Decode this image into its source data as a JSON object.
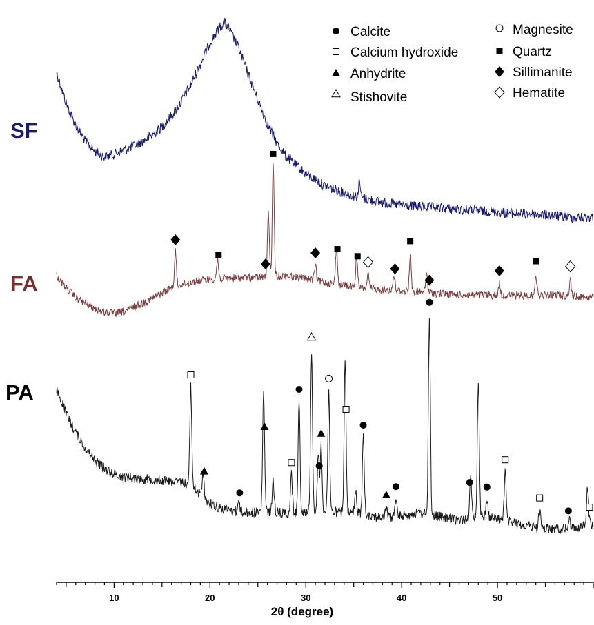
{
  "chart_data": {
    "type": "line",
    "xlabel": "2θ (degree)",
    "xlim": [
      4,
      60
    ],
    "x_ticks": [
      "10",
      "20",
      "30",
      "40",
      "50"
    ],
    "x_tick_values": [
      10,
      20,
      30,
      40,
      50
    ],
    "grid": false,
    "legend": [
      {
        "symbol": "filled-circle",
        "label": "Calcite"
      },
      {
        "symbol": "open-square",
        "label": "Calcium hydroxide"
      },
      {
        "symbol": "filled-triangle",
        "label": "Anhydrite"
      },
      {
        "symbol": "open-triangle",
        "label": "Stishovite"
      },
      {
        "symbol": "open-circle",
        "label": "Magnesite"
      },
      {
        "symbol": "filled-square",
        "label": "Quartz"
      },
      {
        "symbol": "filled-diamond",
        "label": "Sillimanite"
      },
      {
        "symbol": "open-diamond",
        "label": "Hematite"
      }
    ],
    "series": [
      {
        "name": "SF",
        "color": "#1a1a6e",
        "noise": 9,
        "points": [
          [
            4,
            105
          ],
          [
            5,
            150
          ],
          [
            6,
            182
          ],
          [
            7,
            205
          ],
          [
            8,
            220
          ],
          [
            9,
            228
          ],
          [
            10,
            224
          ],
          [
            11,
            218
          ],
          [
            12,
            212
          ],
          [
            13,
            205
          ],
          [
            14,
            196
          ],
          [
            15,
            184
          ],
          [
            16,
            168
          ],
          [
            17,
            148
          ],
          [
            18,
            123
          ],
          [
            19,
            93
          ],
          [
            20,
            62
          ],
          [
            21,
            40
          ],
          [
            21.5,
            32
          ],
          [
            22,
            42
          ],
          [
            23,
            70
          ],
          [
            24,
            108
          ],
          [
            25,
            145
          ],
          [
            26,
            180
          ],
          [
            27,
            208
          ],
          [
            28,
            228
          ],
          [
            30,
            252
          ],
          [
            32,
            270
          ],
          [
            34,
            280
          ],
          [
            36,
            288
          ],
          [
            38,
            294
          ],
          [
            40,
            298
          ],
          [
            42,
            300
          ],
          [
            44,
            302
          ],
          [
            46,
            304
          ],
          [
            48,
            306
          ],
          [
            50,
            308
          ],
          [
            52,
            310
          ],
          [
            54,
            311
          ],
          [
            56,
            313
          ],
          [
            58,
            316
          ],
          [
            60,
            315
          ]
        ],
        "peaks": [
          {
            "x": 35.6,
            "height": 22
          }
        ]
      },
      {
        "name": "FA",
        "color": "#7a4040",
        "noise": 7,
        "points": [
          [
            4,
            400
          ],
          [
            5,
            418
          ],
          [
            6,
            432
          ],
          [
            7,
            440
          ],
          [
            8,
            448
          ],
          [
            9,
            453
          ],
          [
            10,
            455
          ],
          [
            11,
            452
          ],
          [
            12,
            446
          ],
          [
            13,
            440
          ],
          [
            14,
            433
          ],
          [
            15,
            425
          ],
          [
            16,
            418
          ],
          [
            17,
            413
          ],
          [
            18,
            410
          ],
          [
            19,
            407
          ],
          [
            20,
            405
          ],
          [
            22,
            404
          ],
          [
            24,
            403
          ],
          [
            26,
            402
          ],
          [
            28,
            400
          ],
          [
            30,
            404
          ],
          [
            32,
            410
          ],
          [
            34,
            414
          ],
          [
            36,
            418
          ],
          [
            38,
            420
          ],
          [
            40,
            422
          ],
          [
            42,
            424
          ],
          [
            44,
            426
          ],
          [
            46,
            428
          ],
          [
            48,
            428
          ],
          [
            50,
            429
          ],
          [
            52,
            429
          ],
          [
            54,
            429
          ],
          [
            56,
            428
          ],
          [
            58,
            430
          ],
          [
            60,
            432
          ]
        ],
        "peaks": [
          {
            "x": 16.4,
            "height": 50
          },
          {
            "x": 20.8,
            "height": 28
          },
          {
            "x": 26.1,
            "height": 95
          },
          {
            "x": 26.6,
            "height": 160
          },
          {
            "x": 31.0,
            "height": 22
          },
          {
            "x": 33.2,
            "height": 55
          },
          {
            "x": 35.3,
            "height": 45
          },
          {
            "x": 36.5,
            "height": 20
          },
          {
            "x": 39.2,
            "height": 22
          },
          {
            "x": 40.9,
            "height": 55
          },
          {
            "x": 42.6,
            "height": 28
          },
          {
            "x": 50.2,
            "height": 18
          },
          {
            "x": 54.0,
            "height": 32
          },
          {
            "x": 57.6,
            "height": 25
          }
        ]
      },
      {
        "name": "PA",
        "color": "#1a1a1a",
        "noise": 9,
        "points": [
          [
            4,
            565
          ],
          [
            5,
            600
          ],
          [
            6,
            628
          ],
          [
            7,
            650
          ],
          [
            8,
            668
          ],
          [
            9,
            680
          ],
          [
            10,
            688
          ],
          [
            11,
            692
          ],
          [
            12,
            694
          ],
          [
            13,
            695
          ],
          [
            14,
            696
          ],
          [
            15,
            697
          ],
          [
            16,
            698
          ],
          [
            17,
            700
          ],
          [
            18,
            702
          ],
          [
            19,
            718
          ],
          [
            20,
            730
          ],
          [
            21,
            737
          ],
          [
            22,
            740
          ],
          [
            24,
            744
          ],
          [
            26,
            742
          ],
          [
            28,
            745
          ],
          [
            30,
            742
          ],
          [
            32,
            742
          ],
          [
            34,
            744
          ],
          [
            36,
            745
          ],
          [
            38,
            752
          ],
          [
            40,
            748
          ],
          [
            42,
            744
          ],
          [
            44,
            750
          ],
          [
            46,
            755
          ],
          [
            48,
            748
          ],
          [
            50,
            752
          ],
          [
            52,
            760
          ],
          [
            54,
            765
          ],
          [
            56,
            768
          ],
          [
            58,
            766
          ],
          [
            60,
            760
          ]
        ],
        "peaks": [
          {
            "x": 18.0,
            "height": 140
          },
          {
            "x": 19.3,
            "height": 35
          },
          {
            "x": 23.0,
            "height": 15
          },
          {
            "x": 25.6,
            "height": 175
          },
          {
            "x": 26.6,
            "height": 45
          },
          {
            "x": 28.5,
            "height": 55
          },
          {
            "x": 29.3,
            "height": 160
          },
          {
            "x": 30.6,
            "height": 235
          },
          {
            "x": 31.3,
            "height": 80
          },
          {
            "x": 31.6,
            "height": 95
          },
          {
            "x": 32.4,
            "height": 175
          },
          {
            "x": 34.1,
            "height": 220
          },
          {
            "x": 35.2,
            "height": 30
          },
          {
            "x": 36.0,
            "height": 110
          },
          {
            "x": 38.4,
            "height": 15
          },
          {
            "x": 39.4,
            "height": 25
          },
          {
            "x": 42.9,
            "height": 290
          },
          {
            "x": 47.2,
            "height": 55
          },
          {
            "x": 48.0,
            "height": 195
          },
          {
            "x": 48.9,
            "height": 25
          },
          {
            "x": 50.8,
            "height": 70
          },
          {
            "x": 54.4,
            "height": 25
          },
          {
            "x": 57.5,
            "height": 12
          },
          {
            "x": 59.4,
            "height": 55
          }
        ]
      }
    ],
    "markers": [
      {
        "symbol": "filled-diamond",
        "x": 16.4,
        "sample": "FA"
      },
      {
        "symbol": "filled-square",
        "x": 20.9,
        "sample": "FA"
      },
      {
        "symbol": "filled-diamond",
        "x": 25.8,
        "sample": "FA"
      },
      {
        "symbol": "filled-square",
        "x": 26.6,
        "sample": "FA"
      },
      {
        "symbol": "filled-diamond",
        "x": 31.0,
        "sample": "FA"
      },
      {
        "symbol": "filled-square",
        "x": 33.3,
        "sample": "FA"
      },
      {
        "symbol": "filled-square",
        "x": 35.4,
        "sample": "FA"
      },
      {
        "symbol": "open-diamond",
        "x": 36.5,
        "sample": "FA"
      },
      {
        "symbol": "filled-diamond",
        "x": 39.3,
        "sample": "FA"
      },
      {
        "symbol": "filled-square",
        "x": 40.9,
        "sample": "FA"
      },
      {
        "symbol": "filled-diamond",
        "x": 42.9,
        "sample": "FA"
      },
      {
        "symbol": "filled-diamond",
        "x": 50.2,
        "sample": "FA"
      },
      {
        "symbol": "filled-square",
        "x": 54.0,
        "sample": "FA"
      },
      {
        "symbol": "open-diamond",
        "x": 57.6,
        "sample": "FA"
      },
      {
        "symbol": "open-square",
        "x": 18.0,
        "sample": "PA"
      },
      {
        "symbol": "filled-triangle",
        "x": 19.4,
        "sample": "PA"
      },
      {
        "symbol": "filled-circle",
        "x": 23.1,
        "sample": "PA"
      },
      {
        "symbol": "filled-triangle",
        "x": 25.7,
        "sample": "PA"
      },
      {
        "symbol": "open-square",
        "x": 28.5,
        "sample": "PA"
      },
      {
        "symbol": "filled-circle",
        "x": 29.3,
        "sample": "PA"
      },
      {
        "symbol": "open-triangle",
        "x": 30.6,
        "sample": "PA"
      },
      {
        "symbol": "filled-circle",
        "x": 31.4,
        "sample": "PA"
      },
      {
        "symbol": "filled-triangle",
        "x": 31.6,
        "sample": "PA"
      },
      {
        "symbol": "open-circle",
        "x": 32.4,
        "sample": "PA"
      },
      {
        "symbol": "open-square",
        "x": 34.2,
        "sample": "PA"
      },
      {
        "symbol": "filled-circle",
        "x": 36.0,
        "sample": "PA"
      },
      {
        "symbol": "filled-triangle",
        "x": 38.4,
        "sample": "PA"
      },
      {
        "symbol": "filled-circle",
        "x": 39.4,
        "sample": "PA"
      },
      {
        "symbol": "filled-circle",
        "x": 42.9,
        "sample": "PA"
      },
      {
        "symbol": "filled-circle",
        "x": 47.1,
        "sample": "PA"
      },
      {
        "symbol": "filled-circle",
        "x": 48.9,
        "sample": "PA"
      },
      {
        "symbol": "open-square",
        "x": 50.8,
        "sample": "PA"
      },
      {
        "symbol": "open-square",
        "x": 54.4,
        "sample": "PA"
      },
      {
        "symbol": "filled-circle",
        "x": 57.4,
        "sample": "PA"
      },
      {
        "symbol": "open-square",
        "x": 59.6,
        "sample": "PA"
      }
    ]
  }
}
